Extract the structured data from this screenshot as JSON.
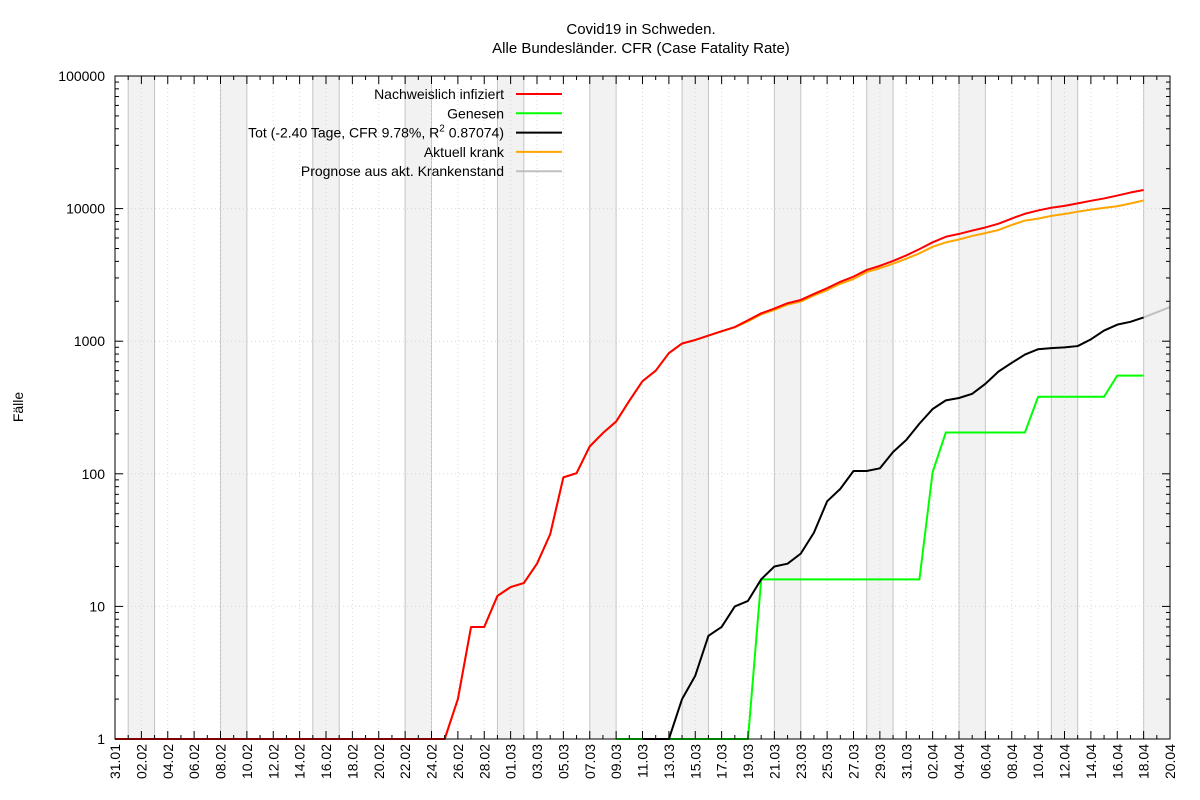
{
  "title_line1": "Covid19 in Schweden.",
  "title_line2": "Alle Bundesländer. CFR (Case Fatality Rate)",
  "chart_data": {
    "type": "line",
    "title": "Covid19 in Schweden. Alle Bundesländer. CFR (Case Fatality Rate)",
    "ylabel": "Fälle",
    "xlabel": "",
    "yscale": "log",
    "ylim": [
      1,
      100000
    ],
    "ytick_labels": [
      "1",
      "10",
      "100",
      "1000",
      "10000",
      "100000"
    ],
    "xlim": [
      "2020-01-31",
      "2020-04-20"
    ],
    "xtick_labels": [
      "31.01",
      "02.02",
      "04.02",
      "06.02",
      "08.02",
      "10.02",
      "12.02",
      "14.02",
      "16.02",
      "18.02",
      "20.02",
      "22.02",
      "24.02",
      "26.02",
      "28.02",
      "01.03",
      "03.03",
      "05.03",
      "07.03",
      "09.03",
      "11.03",
      "13.03",
      "15.03",
      "17.03",
      "19.03",
      "21.03",
      "23.03",
      "25.03",
      "27.03",
      "29.03",
      "31.03",
      "02.04",
      "04.04",
      "06.04",
      "08.04",
      "10.04",
      "12.04",
      "14.04",
      "16.04",
      "18.04",
      "20.04"
    ],
    "grid": true,
    "weekend_shading": true,
    "legend_position": "top-right",
    "series": [
      {
        "name": "Nachweislich infiziert",
        "color": "#ff0000",
        "x": [
          "2020-01-31",
          "2020-02-24",
          "2020-02-25",
          "2020-02-26",
          "2020-02-27",
          "2020-02-28",
          "2020-02-29",
          "2020-03-01",
          "2020-03-02",
          "2020-03-03",
          "2020-03-04",
          "2020-03-05",
          "2020-03-06",
          "2020-03-07",
          "2020-03-08",
          "2020-03-09",
          "2020-03-10",
          "2020-03-11",
          "2020-03-12",
          "2020-03-13",
          "2020-03-14",
          "2020-03-15",
          "2020-03-16",
          "2020-03-17",
          "2020-03-18",
          "2020-03-19",
          "2020-03-20",
          "2020-03-21",
          "2020-03-22",
          "2020-03-23",
          "2020-03-24",
          "2020-03-25",
          "2020-03-26",
          "2020-03-27",
          "2020-03-28",
          "2020-03-29",
          "2020-03-30",
          "2020-03-31",
          "2020-04-01",
          "2020-04-02",
          "2020-04-03",
          "2020-04-04",
          "2020-04-05",
          "2020-04-06",
          "2020-04-07",
          "2020-04-08",
          "2020-04-09",
          "2020-04-10",
          "2020-04-11",
          "2020-04-12",
          "2020-04-13",
          "2020-04-14",
          "2020-04-15",
          "2020-04-16",
          "2020-04-17",
          "2020-04-18"
        ],
        "y": [
          1,
          1,
          1,
          2,
          7,
          7,
          12,
          14,
          15,
          21,
          35,
          94,
          101,
          161,
          203,
          248,
          355,
          500,
          599,
          814,
          961,
          1022,
          1103,
          1190,
          1279,
          1439,
          1623,
          1763,
          1934,
          2046,
          2272,
          2510,
          2806,
          3069,
          3447,
          3700,
          4028,
          4435,
          4947,
          5568,
          6131,
          6443,
          6830,
          7206,
          7693,
          8419,
          9141,
          9685,
          10151,
          10483,
          10948,
          11445,
          11927,
          12540,
          13216,
          13822
        ]
      },
      {
        "name": "Genesen",
        "color": "#00ff00",
        "x": [
          "2020-03-09",
          "2020-03-19",
          "2020-03-20",
          "2020-03-21",
          "2020-04-01",
          "2020-04-02",
          "2020-04-03",
          "2020-04-09",
          "2020-04-10",
          "2020-04-15",
          "2020-04-16",
          "2020-04-18"
        ],
        "y": [
          1,
          1,
          16,
          16,
          16,
          103,
          205,
          205,
          381,
          381,
          550,
          550
        ]
      },
      {
        "name": "Tot (-2.40 Tage, CFR 9.78%, R² 0.87074)",
        "color": "#000000",
        "x": [
          "2020-03-11",
          "2020-03-13",
          "2020-03-14",
          "2020-03-15",
          "2020-03-16",
          "2020-03-17",
          "2020-03-18",
          "2020-03-19",
          "2020-03-20",
          "2020-03-21",
          "2020-03-22",
          "2020-03-23",
          "2020-03-24",
          "2020-03-25",
          "2020-03-26",
          "2020-03-27",
          "2020-03-28",
          "2020-03-29",
          "2020-03-30",
          "2020-03-31",
          "2020-04-01",
          "2020-04-02",
          "2020-04-03",
          "2020-04-04",
          "2020-04-05",
          "2020-04-06",
          "2020-04-07",
          "2020-04-08",
          "2020-04-09",
          "2020-04-10",
          "2020-04-11",
          "2020-04-12",
          "2020-04-13",
          "2020-04-14",
          "2020-04-15",
          "2020-04-16",
          "2020-04-17",
          "2020-04-18"
        ],
        "y": [
          1,
          1,
          2,
          3,
          6,
          7,
          10,
          11,
          16,
          20,
          21,
          25,
          36,
          62,
          77,
          105,
          105,
          110,
          146,
          180,
          239,
          308,
          358,
          373,
          401,
          477,
          591,
          687,
          793,
          870,
          887,
          899,
          919,
          1033,
          1203,
          1333,
          1400,
          1511
        ]
      },
      {
        "name": "Aktuell krank",
        "color": "#ffa500",
        "x": [
          "2020-01-31",
          "2020-02-24",
          "2020-02-25",
          "2020-02-26",
          "2020-02-27",
          "2020-02-28",
          "2020-02-29",
          "2020-03-01",
          "2020-03-02",
          "2020-03-03",
          "2020-03-04",
          "2020-03-05",
          "2020-03-06",
          "2020-03-07",
          "2020-03-08",
          "2020-03-09",
          "2020-03-10",
          "2020-03-11",
          "2020-03-12",
          "2020-03-13",
          "2020-03-14",
          "2020-03-15",
          "2020-03-16",
          "2020-03-17",
          "2020-03-18",
          "2020-03-19",
          "2020-03-20",
          "2020-03-21",
          "2020-03-22",
          "2020-03-23",
          "2020-03-24",
          "2020-03-25",
          "2020-03-26",
          "2020-03-27",
          "2020-03-28",
          "2020-03-29",
          "2020-03-30",
          "2020-03-31",
          "2020-04-01",
          "2020-04-02",
          "2020-04-03",
          "2020-04-04",
          "2020-04-05",
          "2020-04-06",
          "2020-04-07",
          "2020-04-08",
          "2020-04-09",
          "2020-04-10",
          "2020-04-11",
          "2020-04-12",
          "2020-04-13",
          "2020-04-14",
          "2020-04-15",
          "2020-04-16",
          "2020-04-17",
          "2020-04-18"
        ],
        "y": [
          1,
          1,
          1,
          2,
          7,
          7,
          12,
          14,
          15,
          21,
          35,
          94,
          101,
          161,
          203,
          247,
          355,
          499,
          598,
          812,
          959,
          1020,
          1100,
          1186,
          1272,
          1412,
          1590,
          1722,
          1888,
          1990,
          2211,
          2427,
          2712,
          2945,
          3320,
          3550,
          3840,
          4190,
          4600,
          5150,
          5560,
          5850,
          6220,
          6530,
          6900,
          7530,
          8120,
          8400,
          8810,
          9100,
          9480,
          9830,
          10120,
          10420,
          10920,
          11520
        ]
      },
      {
        "name": "Prognose aus akt. Krankenstand",
        "color": "#c0c0c0",
        "x": [
          "2020-04-18",
          "2020-04-20"
        ],
        "y": [
          1511,
          1810
        ]
      }
    ]
  }
}
